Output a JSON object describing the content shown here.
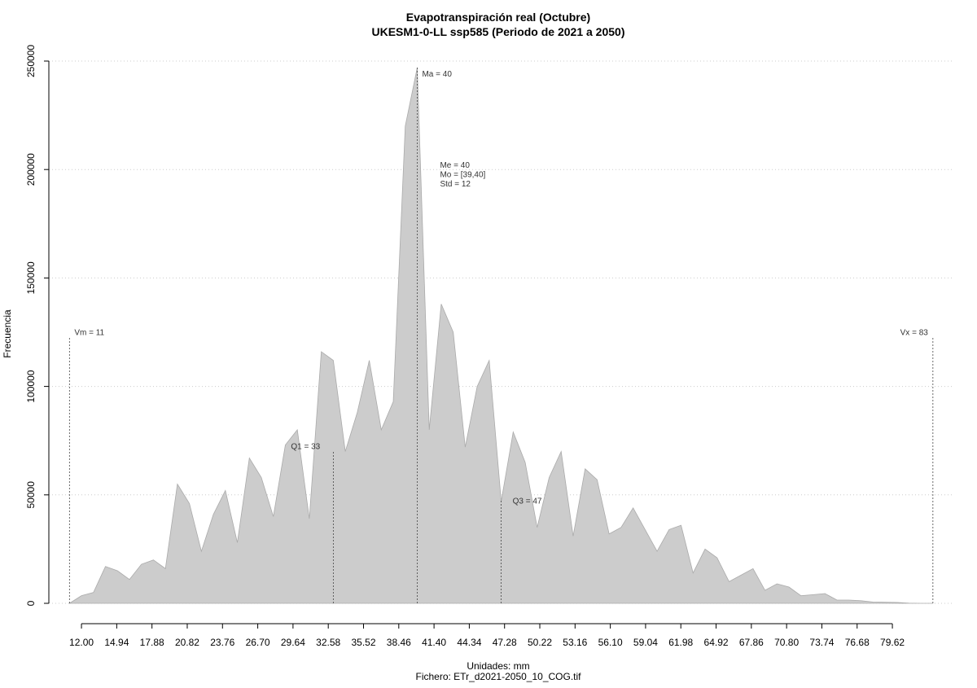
{
  "chart_data": {
    "type": "area",
    "title": "Evapotranspiración real (Octubre)",
    "subtitle": "UKESM1-0-LL ssp585 (Periodo de 2021 a 2050)",
    "x_label": "Unidades: mm",
    "caption": "Fichero: ETr_d2021-2050_10_COG.tif",
    "y_label": "Frecuencia",
    "color": "#cccccc",
    "x": [
      11,
      12,
      13,
      14,
      15,
      16,
      17,
      18,
      19,
      20,
      21,
      22,
      23,
      24,
      25,
      26,
      27,
      28,
      29,
      30,
      31,
      32,
      33,
      34,
      35,
      36,
      37,
      38,
      39,
      40,
      41,
      42,
      43,
      44,
      45,
      46,
      47,
      48,
      49,
      50,
      51,
      52,
      53,
      54,
      55,
      56,
      57,
      58,
      59,
      60,
      61,
      62,
      63,
      64,
      65,
      66,
      67,
      68,
      69,
      70,
      71,
      72,
      73,
      74,
      75,
      76,
      77,
      78,
      79,
      80,
      81,
      82,
      83
    ],
    "values": [
      0,
      3500,
      5000,
      17000,
      15000,
      11000,
      18000,
      20000,
      16000,
      55000,
      46000,
      24000,
      41000,
      52000,
      28000,
      67000,
      58000,
      40000,
      73000,
      80000,
      39000,
      116000,
      112000,
      70000,
      88000,
      112000,
      80000,
      93000,
      220000,
      247000,
      80000,
      138000,
      125000,
      72000,
      100000,
      112000,
      47000,
      79000,
      65000,
      35000,
      58000,
      70000,
      31000,
      62000,
      57000,
      32000,
      35000,
      44000,
      34000,
      24000,
      34000,
      36000,
      14000,
      25000,
      21000,
      10000,
      13000,
      16000,
      6000,
      9000,
      7500,
      3500,
      4000,
      4500,
      1500,
      1500,
      1200,
      600,
      500,
      400,
      100,
      0,
      0
    ],
    "xlim": [
      9.28,
      84.64
    ],
    "ylim": [
      0,
      250000
    ],
    "yticks": [
      0,
      50000,
      100000,
      150000,
      200000,
      250000
    ],
    "xticks": [
      {
        "value": 12,
        "label": "12.00"
      },
      {
        "value": 14.94,
        "label": "14.94"
      },
      {
        "value": 17.88,
        "label": "17.88"
      },
      {
        "value": 20.82,
        "label": "20.82"
      },
      {
        "value": 23.76,
        "label": "23.76"
      },
      {
        "value": 26.7,
        "label": "26.70"
      },
      {
        "value": 29.64,
        "label": "29.64"
      },
      {
        "value": 32.58,
        "label": "32.58"
      },
      {
        "value": 35.52,
        "label": "35.52"
      },
      {
        "value": 38.46,
        "label": "38.46"
      },
      {
        "value": 41.4,
        "label": "41.40"
      },
      {
        "value": 44.34,
        "label": "44.34"
      },
      {
        "value": 47.28,
        "label": "47.28"
      },
      {
        "value": 50.22,
        "label": "50.22"
      },
      {
        "value": 53.16,
        "label": "53.16"
      },
      {
        "value": 56.1,
        "label": "56.10"
      },
      {
        "value": 59.04,
        "label": "59.04"
      },
      {
        "value": 61.98,
        "label": "61.98"
      },
      {
        "value": 64.92,
        "label": "64.92"
      },
      {
        "value": 67.86,
        "label": "67.86"
      },
      {
        "value": 70.8,
        "label": "70.80"
      },
      {
        "value": 73.74,
        "label": "73.74"
      },
      {
        "value": 76.68,
        "label": "76.68"
      },
      {
        "value": 79.62,
        "label": "79.62"
      }
    ],
    "grid": true,
    "annotations": [
      {
        "text": "Vm = 11",
        "x": 11
      },
      {
        "text": "Q1 = 33",
        "x": 33
      },
      {
        "text": "Ma = 40",
        "x": 40
      },
      {
        "text": "Q3 = 47",
        "x": 47
      },
      {
        "text": "Vx = 83",
        "x": 83
      }
    ],
    "stats": [
      "Me = 40",
      "Mo = [39,40]",
      "Std = 12"
    ]
  }
}
